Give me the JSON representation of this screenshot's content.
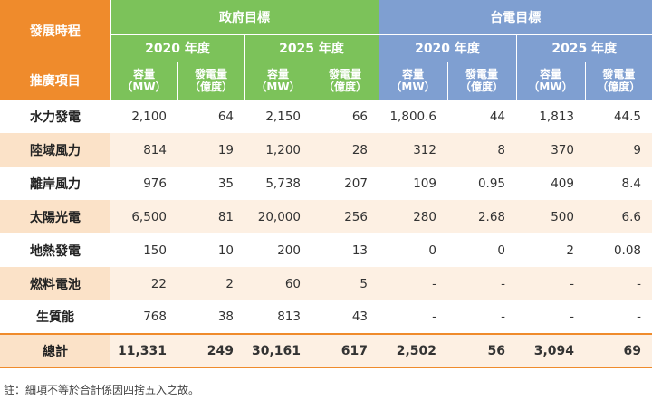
{
  "header": {
    "corner_top": "發展時程",
    "corner_bottom": "推廣項目",
    "gov": "政府目標",
    "taipower": "台電目標",
    "years": [
      "2020 年度",
      "2025 年度",
      "2020 年度",
      "2025 年度"
    ],
    "capacity": "容量\n（MW）",
    "generation": "發電量\n（億度）"
  },
  "rows": [
    {
      "label": "水力發電",
      "values": [
        "2,100",
        "64",
        "2,150",
        "66",
        "1,800.6",
        "44",
        "1,813",
        "44.5"
      ]
    },
    {
      "label": "陸域風力",
      "values": [
        "814",
        "19",
        "1,200",
        "28",
        "312",
        "8",
        "370",
        "9"
      ]
    },
    {
      "label": "離岸風力",
      "values": [
        "976",
        "35",
        "5,738",
        "207",
        "109",
        "0.95",
        "409",
        "8.4"
      ]
    },
    {
      "label": "太陽光電",
      "values": [
        "6,500",
        "81",
        "20,000",
        "256",
        "280",
        "2.68",
        "500",
        "6.6"
      ]
    },
    {
      "label": "地熱發電",
      "values": [
        "150",
        "10",
        "200",
        "13",
        "0",
        "0",
        "2",
        "0.08"
      ]
    },
    {
      "label": "燃料電池",
      "values": [
        "22",
        "2",
        "60",
        "5",
        "-",
        "-",
        "-",
        "-"
      ]
    },
    {
      "label": "生質能",
      "values": [
        "768",
        "38",
        "813",
        "43",
        "-",
        "-",
        "-",
        "-"
      ]
    }
  ],
  "total": {
    "label": "總計",
    "values": [
      "11,331",
      "249",
      "30,161",
      "617",
      "2,502",
      "56",
      "3,094",
      "69"
    ]
  },
  "note": "註：細項不等於合計係因四捨五入之故。",
  "colors": {
    "orange": "#ef8b2c",
    "green": "#7cc25a",
    "blue": "#7f9fd1",
    "row_tint": "#fdf0e3"
  }
}
